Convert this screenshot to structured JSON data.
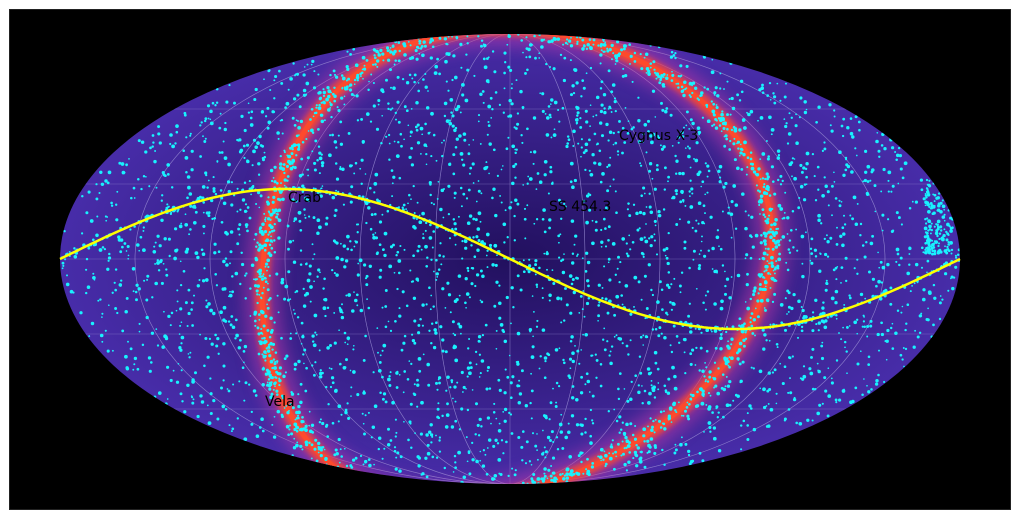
{
  "projection": "aitoff",
  "colors": {
    "frame": "#000000",
    "sky_background": "#4b2fb0",
    "sky_dark": "#22105e",
    "galactic_ring": "#ff4a2a",
    "ring_glow": "#c03aa8",
    "points": "#19f2ff",
    "ecliptic": "#ffff00",
    "grid": "#9a8fd6",
    "label_text": "#000000"
  },
  "labels": {
    "crab": "Crab",
    "cygnus": "Cygnus X-3",
    "ss433": "SS 454.3",
    "vela": "Vela"
  },
  "grid": {
    "enabled": true
  },
  "curves": {
    "ecliptic": "sinusoid",
    "galactic_plane": "ring"
  }
}
